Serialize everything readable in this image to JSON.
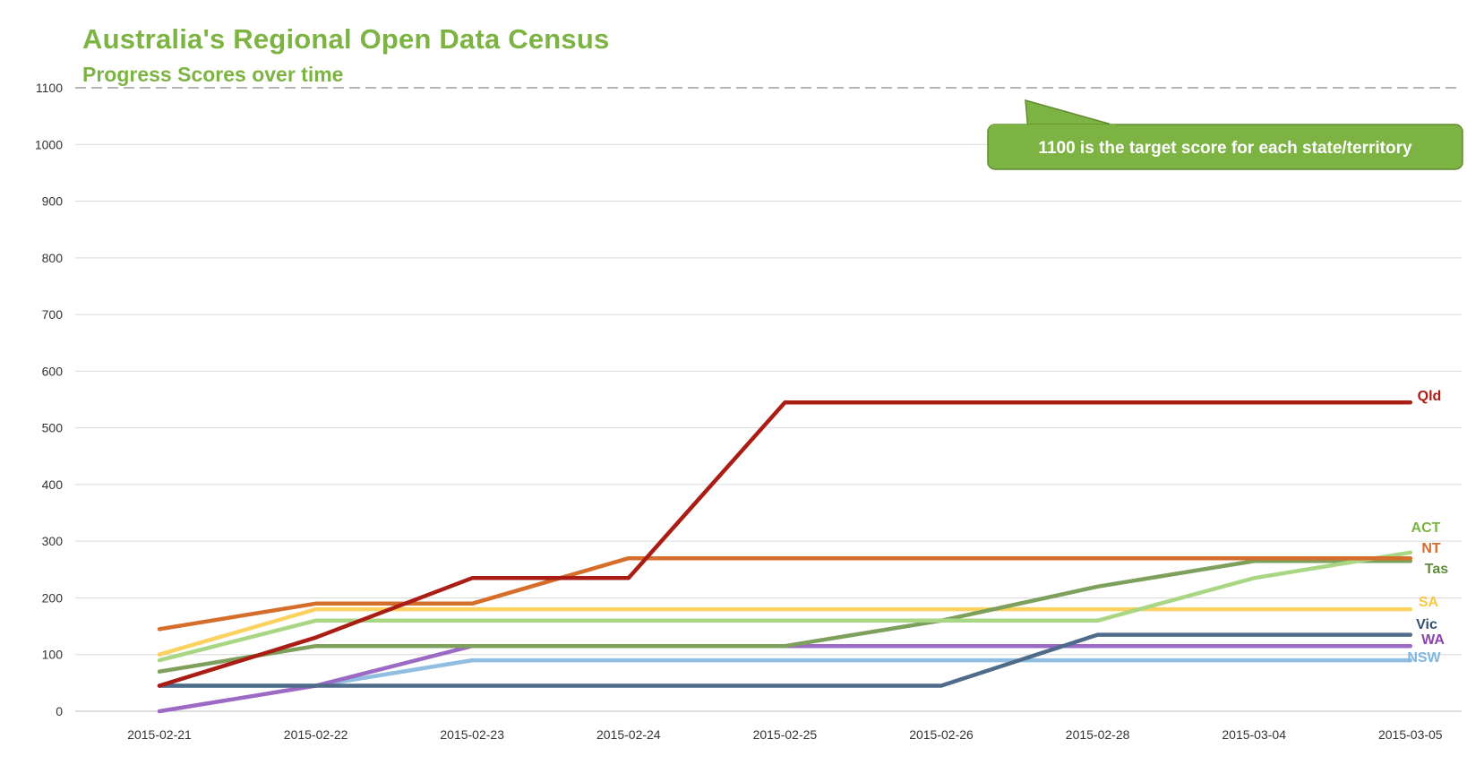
{
  "chart_data": {
    "type": "line",
    "title": "Australia's Regional Open Data Census",
    "subtitle": "Progress Scores over time",
    "categories": [
      "2015-02-21",
      "2015-02-22",
      "2015-02-23",
      "2015-02-24",
      "2015-02-25",
      "2015-02-26",
      "2015-02-28",
      "2015-03-04",
      "2015-03-05"
    ],
    "y_ticks": [
      0,
      100,
      200,
      300,
      400,
      500,
      600,
      700,
      800,
      900,
      1000,
      1100
    ],
    "ylim": [
      0,
      1100
    ],
    "grid": true,
    "target": {
      "value": 1100,
      "annotation": "1100 is the target score for each state/territory"
    },
    "series": [
      {
        "name": "Qld",
        "color": "#a91d15",
        "values": [
          45,
          130,
          235,
          235,
          545,
          545,
          545,
          545,
          545
        ]
      },
      {
        "name": "ACT",
        "color": "#a9d683",
        "values": [
          90,
          160,
          160,
          160,
          160,
          160,
          160,
          235,
          280
        ]
      },
      {
        "name": "NT",
        "color": "#d56e2b",
        "values": [
          145,
          190,
          190,
          270,
          270,
          270,
          270,
          270,
          270
        ]
      },
      {
        "name": "Tas",
        "color": "#7da05c",
        "values": [
          70,
          115,
          115,
          115,
          115,
          160,
          220,
          265,
          265
        ]
      },
      {
        "name": "SA",
        "color": "#fbd160",
        "values": [
          100,
          180,
          180,
          180,
          180,
          180,
          180,
          180,
          180
        ]
      },
      {
        "name": "Vic",
        "color": "#4f6b8a",
        "values": [
          45,
          45,
          45,
          45,
          45,
          45,
          135,
          135,
          135
        ]
      },
      {
        "name": "WA",
        "color": "#9c69c4",
        "values": [
          0,
          45,
          115,
          115,
          115,
          115,
          115,
          115,
          115
        ]
      },
      {
        "name": "NSW",
        "color": "#90bde0",
        "values": [
          45,
          45,
          90,
          90,
          90,
          90,
          90,
          90,
          90
        ]
      }
    ]
  }
}
